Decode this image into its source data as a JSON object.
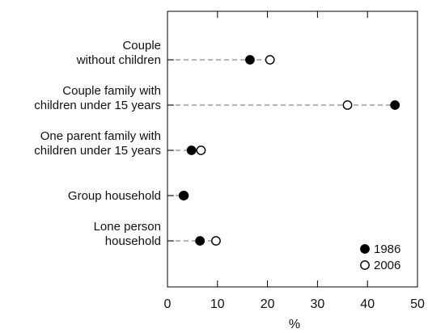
{
  "chart_data": {
    "type": "scatter",
    "categories": [
      [
        "Couple",
        "without children"
      ],
      [
        "Couple family with",
        "children under 15 years"
      ],
      [
        "One parent family with",
        "children under 15 years"
      ],
      [
        "Group household"
      ],
      [
        "Lone person",
        "household"
      ]
    ],
    "series": [
      {
        "name": "1986",
        "values": [
          16.5,
          45.5,
          4.8,
          3.2,
          6.5
        ],
        "marker": "filled",
        "color": "#000000"
      },
      {
        "name": "2006",
        "values": [
          20.5,
          36.0,
          6.7,
          3.3,
          9.7
        ],
        "marker": "open",
        "color": "#000000"
      }
    ],
    "xlabel": "%",
    "xlim": [
      0,
      50
    ],
    "xticks": [
      0,
      10,
      20,
      30,
      40,
      50
    ],
    "grid": false,
    "legend": "bottom-right",
    "connector": "dashed-from-axis"
  }
}
